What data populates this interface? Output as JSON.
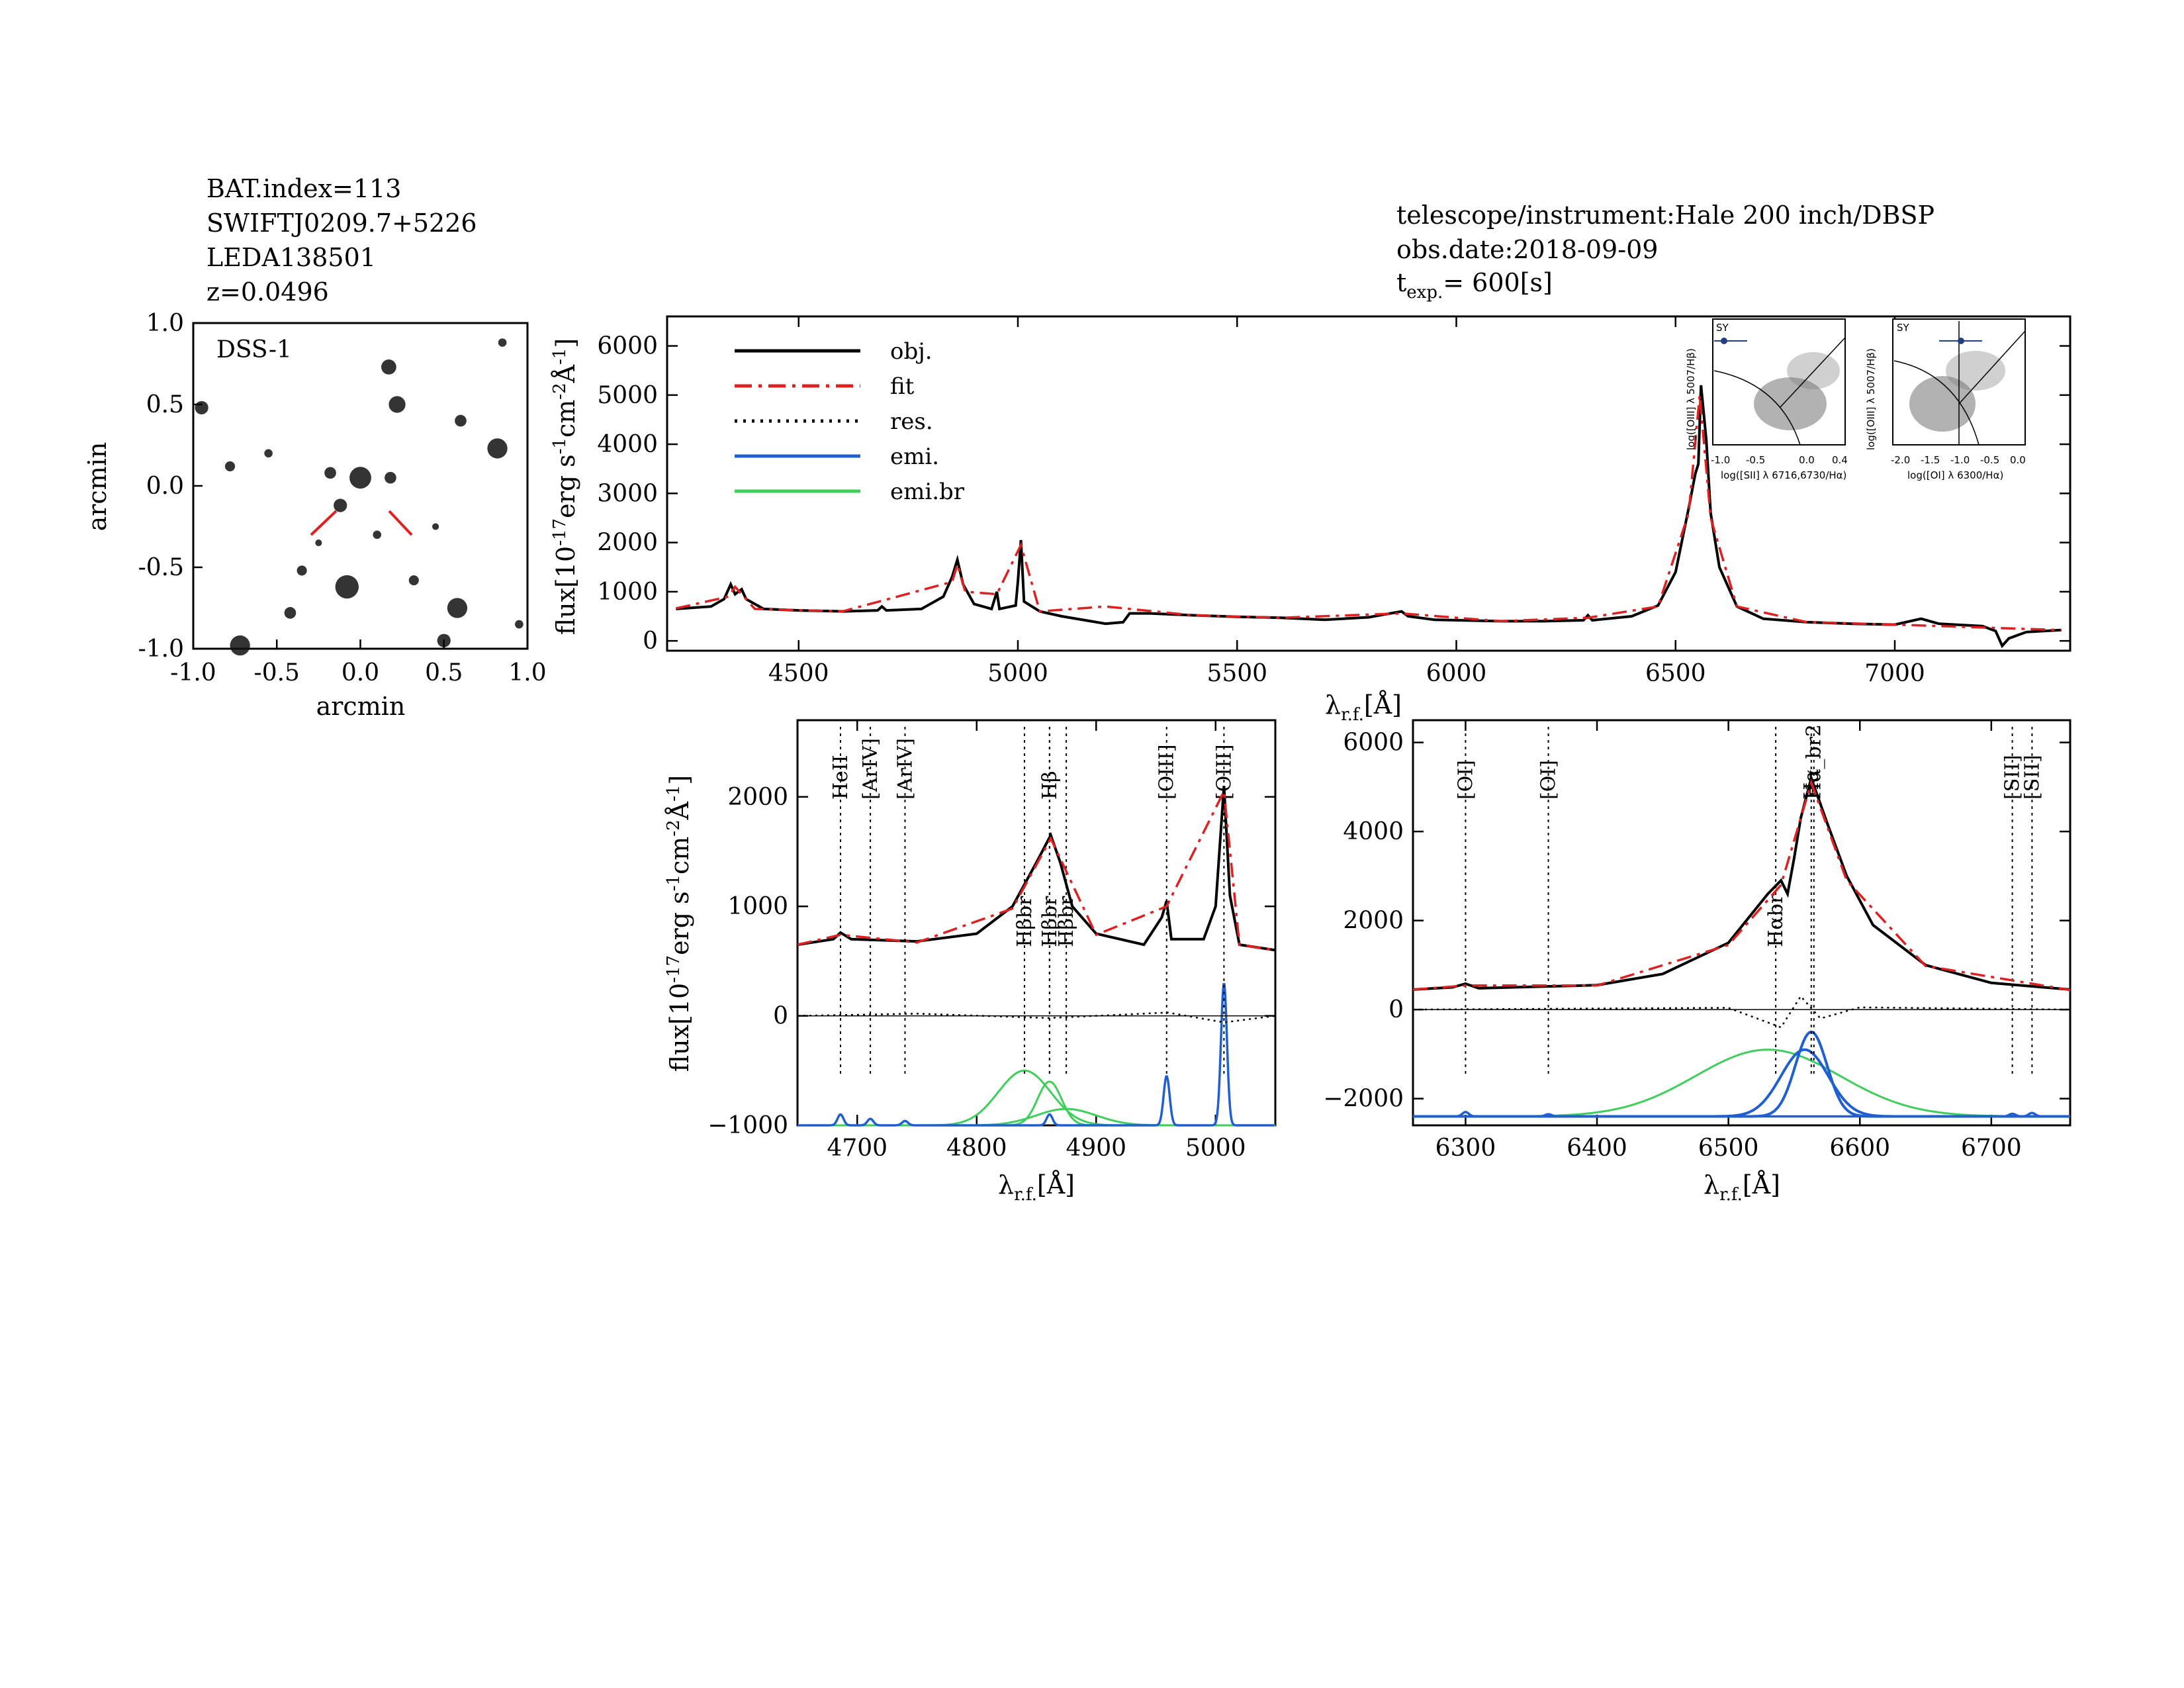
{
  "header_left": {
    "bat_index": "BAT.index=113",
    "swift_id": "SWIFTJ0209.7+5226",
    "leda": "LEDA138501",
    "redshift": "z=0.0496"
  },
  "header_right": {
    "telescope": "telescope/instrument:Hale 200 inch/DBSP",
    "obs_date": "obs.date:2018-09-09",
    "texp_prefix": "t",
    "texp_sub": "exp.",
    "texp_value": "=  600[s]"
  },
  "image_panel": {
    "label": "DSS-1",
    "xlabel": "arcmin",
    "ylabel": "arcmin",
    "xticks": [
      "-1.0",
      "-0.5",
      "0.0",
      "0.5",
      "1.0"
    ],
    "yticks": [
      "1.0",
      "0.5",
      "0.0",
      "-0.5",
      "-1.0"
    ],
    "marker_color": "#e02020",
    "stars": [
      {
        "x": -0.72,
        "y": -0.98,
        "s": 0.06
      },
      {
        "x": 0.17,
        "y": 0.73,
        "s": 0.045
      },
      {
        "x": 0.22,
        "y": 0.5,
        "s": 0.05
      },
      {
        "x": 0.82,
        "y": 0.23,
        "s": 0.06
      },
      {
        "x": 0.6,
        "y": 0.4,
        "s": 0.035
      },
      {
        "x": 0.0,
        "y": 0.05,
        "s": 0.065
      },
      {
        "x": -0.18,
        "y": 0.08,
        "s": 0.035
      },
      {
        "x": -0.12,
        "y": -0.12,
        "s": 0.04
      },
      {
        "x": 0.18,
        "y": 0.05,
        "s": 0.035
      },
      {
        "x": -0.08,
        "y": -0.62,
        "s": 0.07
      },
      {
        "x": -0.35,
        "y": -0.52,
        "s": 0.03
      },
      {
        "x": 0.32,
        "y": -0.58,
        "s": 0.03
      },
      {
        "x": 0.58,
        "y": -0.75,
        "s": 0.06
      },
      {
        "x": 0.5,
        "y": -0.95,
        "s": 0.04
      },
      {
        "x": -0.42,
        "y": -0.78,
        "s": 0.035
      },
      {
        "x": -0.95,
        "y": 0.48,
        "s": 0.04
      },
      {
        "x": -0.78,
        "y": 0.12,
        "s": 0.03
      },
      {
        "x": 0.85,
        "y": 0.88,
        "s": 0.025
      },
      {
        "x": -0.55,
        "y": 0.2,
        "s": 0.025
      },
      {
        "x": 0.1,
        "y": -0.3,
        "s": 0.025
      },
      {
        "x": -0.25,
        "y": -0.35,
        "s": 0.02
      },
      {
        "x": 0.95,
        "y": -0.85,
        "s": 0.025
      },
      {
        "x": 0.45,
        "y": -0.25,
        "s": 0.02
      }
    ]
  },
  "chart_data": [
    {
      "type": "line",
      "id": "full_spectrum",
      "xlabel": "λr.f.[Å]",
      "ylabel": "flux[10^-17 erg s^-1 cm^-2 Å^-1]",
      "xlim": [
        4200,
        7400
      ],
      "ylim": [
        -200,
        6600
      ],
      "xticks": [
        4500,
        5000,
        5500,
        6000,
        6500,
        7000
      ],
      "yticks": [
        0,
        1000,
        2000,
        3000,
        4000,
        5000,
        6000
      ],
      "legend": [
        "obj.",
        "fit",
        "res.",
        "emi.",
        "emi.br"
      ],
      "colors": {
        "obj": "#000000",
        "fit": "#e02020",
        "res": "#000000",
        "emi": "#1f5fd0",
        "emi_br": "#3ecf5a"
      },
      "obj_points": [
        [
          4220,
          650
        ],
        [
          4300,
          700
        ],
        [
          4330,
          850
        ],
        [
          4345,
          1150
        ],
        [
          4355,
          950
        ],
        [
          4370,
          1050
        ],
        [
          4380,
          850
        ],
        [
          4420,
          650
        ],
        [
          4500,
          620
        ],
        [
          4600,
          600
        ],
        [
          4680,
          620
        ],
        [
          4690,
          700
        ],
        [
          4700,
          620
        ],
        [
          4780,
          650
        ],
        [
          4830,
          900
        ],
        [
          4850,
          1300
        ],
        [
          4862,
          1650
        ],
        [
          4875,
          1150
        ],
        [
          4900,
          750
        ],
        [
          4940,
          650
        ],
        [
          4952,
          1000
        ],
        [
          4958,
          650
        ],
        [
          4995,
          720
        ],
        [
          5000,
          1200
        ],
        [
          5007,
          2050
        ],
        [
          5014,
          800
        ],
        [
          5050,
          600
        ],
        [
          5100,
          500
        ],
        [
          5200,
          350
        ],
        [
          5240,
          380
        ],
        [
          5255,
          560
        ],
        [
          5300,
          560
        ],
        [
          5400,
          520
        ],
        [
          5500,
          490
        ],
        [
          5600,
          470
        ],
        [
          5700,
          430
        ],
        [
          5800,
          480
        ],
        [
          5875,
          600
        ],
        [
          5890,
          500
        ],
        [
          5950,
          430
        ],
        [
          6100,
          400
        ],
        [
          6200,
          400
        ],
        [
          6290,
          420
        ],
        [
          6300,
          520
        ],
        [
          6310,
          420
        ],
        [
          6400,
          500
        ],
        [
          6460,
          720
        ],
        [
          6500,
          1400
        ],
        [
          6530,
          2700
        ],
        [
          6545,
          3400
        ],
        [
          6552,
          3600
        ],
        [
          6558,
          5200
        ],
        [
          6570,
          4100
        ],
        [
          6580,
          2600
        ],
        [
          6600,
          1500
        ],
        [
          6640,
          700
        ],
        [
          6700,
          450
        ],
        [
          6800,
          380
        ],
        [
          6900,
          350
        ],
        [
          7000,
          330
        ],
        [
          7060,
          450
        ],
        [
          7100,
          350
        ],
        [
          7200,
          300
        ],
        [
          7230,
          200
        ],
        [
          7245,
          -100
        ],
        [
          7260,
          50
        ],
        [
          7300,
          180
        ],
        [
          7380,
          220
        ]
      ],
      "fit_points": [
        [
          4220,
          660
        ],
        [
          4340,
          900
        ],
        [
          4355,
          1100
        ],
        [
          4400,
          650
        ],
        [
          4600,
          600
        ],
        [
          4850,
          1200
        ],
        [
          4862,
          1550
        ],
        [
          4880,
          1000
        ],
        [
          4952,
          950
        ],
        [
          5007,
          1950
        ],
        [
          5050,
          600
        ],
        [
          5200,
          700
        ],
        [
          5400,
          520
        ],
        [
          5600,
          470
        ],
        [
          5875,
          560
        ],
        [
          6100,
          400
        ],
        [
          6300,
          470
        ],
        [
          6460,
          700
        ],
        [
          6530,
          2600
        ],
        [
          6555,
          5000
        ],
        [
          6580,
          2500
        ],
        [
          6640,
          700
        ],
        [
          6800,
          380
        ],
        [
          7000,
          330
        ],
        [
          7380,
          220
        ]
      ],
      "inset_bpt": [
        {
          "xlabel": "log([SII] λ 6716,6730/Hα)",
          "ylabel": "log([OIII] λ 5007/Hβ)",
          "label": "SY",
          "xticks": [
            "-1.0",
            "-0.5",
            "0.0",
            "0.4"
          ],
          "yticks": [
            "1.5",
            "1.0",
            "0.5",
            "0.0",
            "-0.5",
            "-1.0"
          ]
        },
        {
          "xlabel": "log([OI] λ 6300/Hα)",
          "ylabel": "log([OIII] λ 5007/Hβ)",
          "label": "SY",
          "xticks": [
            "-2.0",
            "-1.5",
            "-1.0",
            "-0.5",
            "0.0"
          ],
          "yticks": [
            "1.5",
            "1.0",
            "0.5",
            "0.0",
            "-0.5",
            "-1.0"
          ]
        }
      ]
    },
    {
      "type": "line",
      "id": "hbeta_zoom",
      "xlabel": "λr.f.[Å]",
      "ylabel": "flux[10^-17 erg s^-1 cm^-2 Å^-1]",
      "xlim": [
        4650,
        5050
      ],
      "ylim": [
        -1000,
        2700
      ],
      "xticks": [
        4700,
        4800,
        4900,
        5000
      ],
      "yticks": [
        -1000,
        0,
        1000,
        2000
      ],
      "line_labels": [
        "HeII",
        "[ArIV]",
        "[ArIV]",
        "Hβ",
        "[OIII]",
        "[OIII]",
        "Hβbr",
        "Hβbr",
        "Hβbr"
      ],
      "line_positions": [
        4686,
        4711,
        4740,
        4861,
        4959,
        5007,
        4840,
        4861,
        4875
      ],
      "obj_points": [
        [
          4650,
          650
        ],
        [
          4680,
          700
        ],
        [
          4686,
          760
        ],
        [
          4695,
          700
        ],
        [
          4750,
          680
        ],
        [
          4800,
          750
        ],
        [
          4830,
          1000
        ],
        [
          4850,
          1400
        ],
        [
          4862,
          1650
        ],
        [
          4870,
          1400
        ],
        [
          4880,
          1000
        ],
        [
          4900,
          750
        ],
        [
          4940,
          650
        ],
        [
          4955,
          900
        ],
        [
          4959,
          1050
        ],
        [
          4963,
          700
        ],
        [
          4990,
          700
        ],
        [
          5000,
          1000
        ],
        [
          5007,
          2100
        ],
        [
          5012,
          1100
        ],
        [
          5020,
          650
        ],
        [
          5050,
          600
        ]
      ],
      "fit_points": [
        [
          4650,
          650
        ],
        [
          4686,
          740
        ],
        [
          4750,
          670
        ],
        [
          4830,
          980
        ],
        [
          4862,
          1620
        ],
        [
          4900,
          740
        ],
        [
          4959,
          1000
        ],
        [
          5007,
          2050
        ],
        [
          5020,
          650
        ],
        [
          5050,
          600
        ]
      ],
      "res_points": [
        [
          4650,
          0
        ],
        [
          4750,
          20
        ],
        [
          4860,
          -20
        ],
        [
          4960,
          30
        ],
        [
          5007,
          -60
        ],
        [
          5050,
          0
        ]
      ],
      "emi_peaks": [
        [
          4686,
          100
        ],
        [
          4711,
          60
        ],
        [
          4740,
          40
        ],
        [
          4861,
          100
        ],
        [
          4959,
          450
        ],
        [
          5007,
          1300
        ]
      ],
      "emi_br": [
        {
          "center": 4840,
          "amp": 500,
          "sigma": 22
        },
        {
          "center": 4861,
          "amp": 400,
          "sigma": 10
        },
        {
          "center": 4875,
          "amp": 150,
          "sigma": 25
        }
      ],
      "baseline": -1000
    },
    {
      "type": "line",
      "id": "halpha_zoom",
      "xlabel": "λr.f.[Å]",
      "ylabel": "",
      "xlim": [
        6260,
        6760
      ],
      "ylim": [
        -2600,
        6500
      ],
      "xticks": [
        6300,
        6400,
        6500,
        6600,
        6700
      ],
      "yticks": [
        -2000,
        0,
        2000,
        4000,
        6000
      ],
      "line_labels": [
        "[OI]",
        "[OI]",
        "Hαbr",
        "Hα",
        "Hα_br2",
        "[SII]",
        "[SII]"
      ],
      "line_positions": [
        6300,
        6363,
        6536,
        6563,
        6565,
        6716,
        6731
      ],
      "obj_points": [
        [
          6260,
          450
        ],
        [
          6290,
          500
        ],
        [
          6300,
          580
        ],
        [
          6310,
          480
        ],
        [
          6400,
          550
        ],
        [
          6450,
          800
        ],
        [
          6500,
          1500
        ],
        [
          6530,
          2600
        ],
        [
          6540,
          2900
        ],
        [
          6545,
          2600
        ],
        [
          6550,
          3400
        ],
        [
          6555,
          4300
        ],
        [
          6563,
          5200
        ],
        [
          6575,
          4200
        ],
        [
          6590,
          3000
        ],
        [
          6610,
          1900
        ],
        [
          6650,
          1000
        ],
        [
          6700,
          600
        ],
        [
          6760,
          450
        ]
      ],
      "fit_points": [
        [
          6260,
          450
        ],
        [
          6300,
          540
        ],
        [
          6400,
          540
        ],
        [
          6500,
          1450
        ],
        [
          6540,
          2800
        ],
        [
          6563,
          5100
        ],
        [
          6590,
          2900
        ],
        [
          6650,
          980
        ],
        [
          6760,
          440
        ]
      ],
      "res_points": [
        [
          6260,
          0
        ],
        [
          6500,
          40
        ],
        [
          6540,
          -400
        ],
        [
          6555,
          300
        ],
        [
          6570,
          -200
        ],
        [
          6600,
          50
        ],
        [
          6760,
          0
        ]
      ],
      "emi_peaks": [
        [
          6300,
          100
        ],
        [
          6363,
          50
        ],
        [
          6716,
          60
        ],
        [
          6731,
          80
        ]
      ],
      "emi_core": [
        {
          "center": 6563,
          "amp": 1900,
          "sigma": 12
        },
        {
          "center": 6558,
          "amp": 1500,
          "sigma": 18
        }
      ],
      "emi_br": [
        {
          "center": 6530,
          "amp": 1500,
          "sigma": 55
        }
      ],
      "baseline": -2400
    }
  ]
}
